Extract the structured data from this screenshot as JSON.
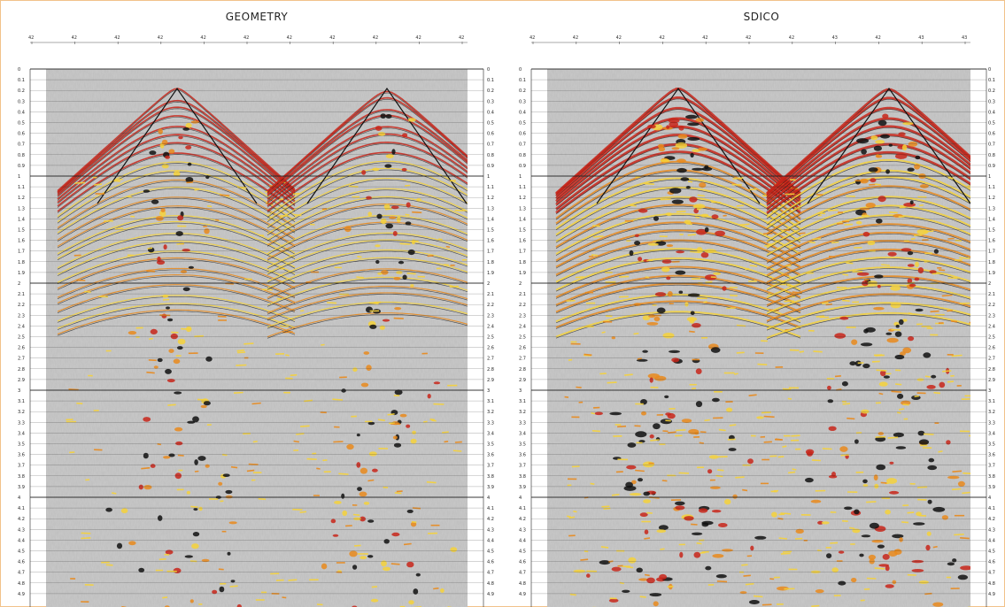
{
  "panels": [
    {
      "id": "geometry",
      "title": "GEOMETRY",
      "top_axis_labels": [
        "42",
        "42",
        "42",
        "42",
        "42",
        "42",
        "42",
        "42",
        "42",
        "42",
        "42"
      ]
    },
    {
      "id": "sdico",
      "title": "SDICO",
      "top_axis_labels": [
        "42",
        "42",
        "42",
        "42",
        "42",
        "42",
        "42",
        "43",
        "42",
        "43",
        "43"
      ]
    }
  ],
  "time_axis": {
    "labels": [
      "0",
      "0.1",
      "0.2",
      "0.3",
      "0.4",
      "0.5",
      "0.6",
      "0.7",
      "0.8",
      "0.9",
      "1",
      "1.1",
      "1.2",
      "1.3",
      "1.4",
      "1.5",
      "1.6",
      "1.7",
      "1.8",
      "1.9",
      "2",
      "2.1",
      "2.2",
      "2.3",
      "2.4",
      "2.5",
      "2.6",
      "2.7",
      "2.8",
      "2.9",
      "3",
      "3.1",
      "3.2",
      "3.3",
      "3.4",
      "3.5",
      "3.6",
      "3.7",
      "3.8",
      "3.9",
      "4",
      "4.1",
      "4.2",
      "4.3",
      "4.4",
      "4.5",
      "4.6",
      "4.7",
      "4.8",
      "4.9"
    ]
  },
  "colors": {
    "background_gray": "#c9c9c9",
    "wiggle_black": "#111111",
    "amplitude_red": "#c8261a",
    "amplitude_orange": "#e98a1c",
    "amplitude_yellow": "#f6d23a",
    "frame_border": "#f2c28a"
  }
}
